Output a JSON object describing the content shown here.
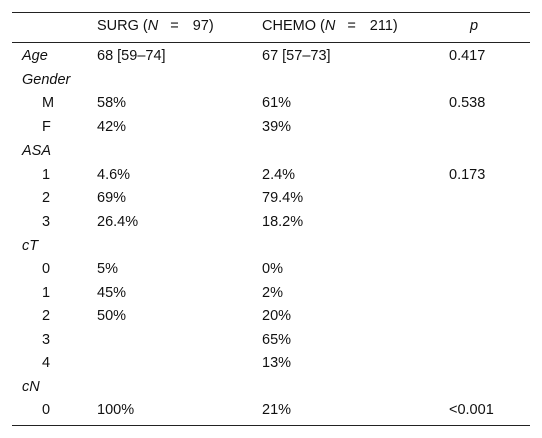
{
  "header": {
    "surg_label": "SURG (",
    "surg_n": "N",
    "surg_eq": "=",
    "surg_count": "97)",
    "chemo_label": "CHEMO (",
    "chemo_n": "N",
    "chemo_eq": "=",
    "chemo_count": "211)",
    "p_label": "p"
  },
  "rows": [
    {
      "label": "Age",
      "kind": "section",
      "surg": "68 [59–74]",
      "chemo": "67 [57–73]",
      "p": "0.417"
    },
    {
      "label": "Gender",
      "kind": "section",
      "surg": "",
      "chemo": "",
      "p": ""
    },
    {
      "label": "M",
      "kind": "sub",
      "surg": "58%",
      "chemo": "61%",
      "p": "0.538"
    },
    {
      "label": "F",
      "kind": "sub",
      "surg": "42%",
      "chemo": "39%",
      "p": ""
    },
    {
      "label": "ASA",
      "kind": "section",
      "surg": "",
      "chemo": "",
      "p": ""
    },
    {
      "label": "1",
      "kind": "sub",
      "surg": "4.6%",
      "chemo": "2.4%",
      "p": "0.173"
    },
    {
      "label": "2",
      "kind": "sub",
      "surg": "69%",
      "chemo": "79.4%",
      "p": ""
    },
    {
      "label": "3",
      "kind": "sub",
      "surg": "26.4%",
      "chemo": "18.2%",
      "p": ""
    },
    {
      "label": "cT",
      "kind": "section",
      "surg": "",
      "chemo": "",
      "p": ""
    },
    {
      "label": "0",
      "kind": "sub",
      "surg": "5%",
      "chemo": "0%",
      "p": ""
    },
    {
      "label": "1",
      "kind": "sub",
      "surg": "45%",
      "chemo": "2%",
      "p": ""
    },
    {
      "label": "2",
      "kind": "sub",
      "surg": "50%",
      "chemo": "20%",
      "p": ""
    },
    {
      "label": "3",
      "kind": "sub",
      "surg": "",
      "chemo": "65%",
      "p": ""
    },
    {
      "label": "4",
      "kind": "sub",
      "surg": "",
      "chemo": "13%",
      "p": ""
    },
    {
      "label": "cN",
      "kind": "section",
      "surg": "",
      "chemo": "",
      "p": ""
    },
    {
      "label": "0",
      "kind": "sub",
      "surg": "100%",
      "chemo": "21%",
      "p": "<0.001"
    }
  ]
}
